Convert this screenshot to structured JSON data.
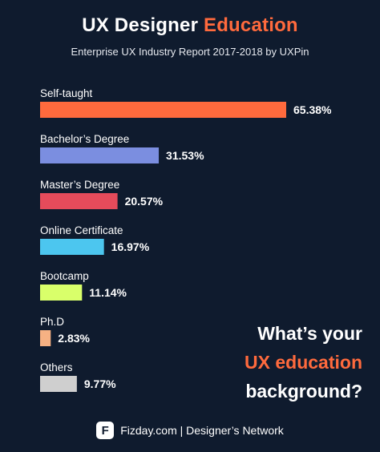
{
  "header": {
    "title_main": "UX Designer ",
    "title_accent": "Education",
    "subtitle": "Enterprise UX Industry Report 2017-2018 by UXPin"
  },
  "chart_data": {
    "type": "bar",
    "orientation": "horizontal",
    "categories": [
      "Self-taught",
      "Bachelor’s Degree",
      "Master’s Degree",
      "Online Certificate",
      "Bootcamp",
      "Ph.D",
      "Others"
    ],
    "values": [
      65.38,
      31.53,
      20.57,
      16.97,
      11.14,
      2.83,
      9.77
    ],
    "value_labels": [
      "65.38%",
      "31.53%",
      "20.57%",
      "16.97%",
      "11.14%",
      "2.83%",
      "9.77%"
    ],
    "colors": [
      "#ff6a3d",
      "#7b8ee0",
      "#e54b5b",
      "#4cc6ef",
      "#d9ff6a",
      "#f6b183",
      "#cfcfcf"
    ],
    "xlim": [
      0,
      100
    ],
    "grid": false,
    "legend": "none"
  },
  "callout": {
    "line1": "What’s your",
    "line2": "UX education",
    "line3": "background?"
  },
  "footer": {
    "logo_letter": "F",
    "text": "Fizday.com | Designer’s Network"
  }
}
